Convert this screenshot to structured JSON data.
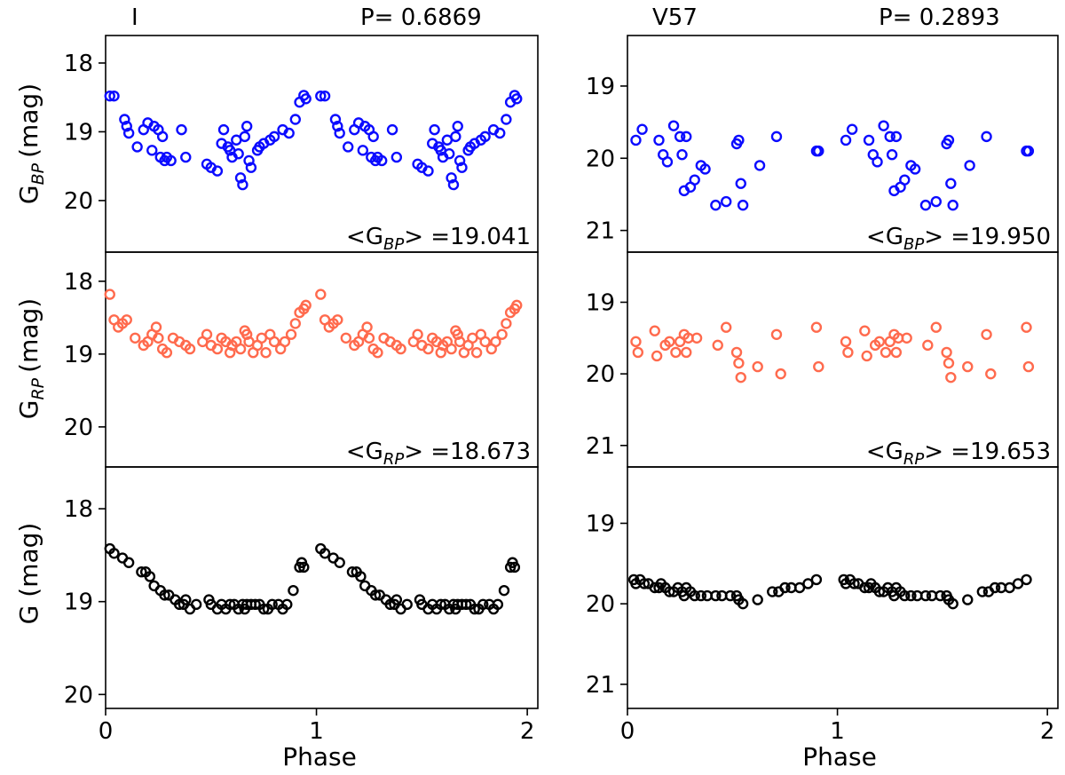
{
  "figure": {
    "xlabel": "Phase",
    "x_ticks": [
      0,
      1,
      2
    ],
    "xlim": [
      0,
      2.05
    ]
  },
  "columns": [
    {
      "star": "I",
      "period_label": "P= 0.6869",
      "panels": [
        {
          "band": "BP",
          "ylabel_base": "G",
          "ylabel_sub": "BP",
          "ylabel_unit": "(mag)",
          "ylim": [
            17.6,
            20.75
          ],
          "y_ticks": [
            18,
            19,
            20
          ],
          "color": "#0b0bff",
          "mean_label_prefix": "<G",
          "mean_label_sub": "BP",
          "mean_label_suffix": "> =19.041"
        },
        {
          "band": "RP",
          "ylabel_base": "G",
          "ylabel_sub": "RP",
          "ylabel_unit": "(mag)",
          "ylim": [
            17.6,
            20.55
          ],
          "y_ticks": [
            18,
            19,
            20
          ],
          "color": "#ff6a4d",
          "mean_label_prefix": "<G",
          "mean_label_sub": "RP",
          "mean_label_suffix": "> =18.673"
        },
        {
          "band": "G",
          "ylabel_base": "G (mag)",
          "ylabel_sub": "",
          "ylabel_unit": "",
          "ylim": [
            17.55,
            20.15
          ],
          "y_ticks": [
            18,
            19,
            20
          ],
          "color": "#000000",
          "mean_label_prefix": "",
          "mean_label_sub": "",
          "mean_label_suffix": ""
        }
      ]
    },
    {
      "star": "V57",
      "period_label": "P= 0.2893",
      "panels": [
        {
          "band": "BP",
          "ylabel_base": "",
          "ylabel_sub": "",
          "ylabel_unit": "",
          "ylim": [
            18.3,
            21.3
          ],
          "y_ticks": [
            19,
            20,
            21
          ],
          "color": "#0b0bff",
          "mean_label_prefix": "<G",
          "mean_label_sub": "BP",
          "mean_label_suffix": "> =19.950"
        },
        {
          "band": "RP",
          "ylabel_base": "",
          "ylabel_sub": "",
          "ylabel_unit": "",
          "ylim": [
            18.3,
            21.3
          ],
          "y_ticks": [
            19,
            20,
            21
          ],
          "color": "#ff6a4d",
          "mean_label_prefix": "<G",
          "mean_label_sub": "RP",
          "mean_label_suffix": "> =19.653"
        },
        {
          "band": "G",
          "ylabel_base": "",
          "ylabel_sub": "",
          "ylabel_unit": "",
          "ylim": [
            18.3,
            21.3
          ],
          "y_ticks": [
            19,
            20,
            21
          ],
          "color": "#000000",
          "mean_label_prefix": "",
          "mean_label_sub": "",
          "mean_label_suffix": ""
        }
      ]
    }
  ],
  "chart_data": [
    {
      "type": "scatter",
      "title": "I   P= 0.6869",
      "xlabel": "Phase",
      "series": [
        {
          "name": "G_BP",
          "x": [
            0.02,
            0.04,
            0.09,
            0.1,
            0.11,
            0.15,
            0.18,
            0.2,
            0.22,
            0.23,
            0.25,
            0.26,
            0.27,
            0.28,
            0.29,
            0.31,
            0.36,
            0.38,
            0.48,
            0.5,
            0.53,
            0.55,
            0.56,
            0.58,
            0.59,
            0.6,
            0.62,
            0.63,
            0.64,
            0.65,
            0.66,
            0.67,
            0.68,
            0.69,
            0.72,
            0.73,
            0.75,
            0.78,
            0.8,
            0.84,
            0.87,
            0.9,
            0.92,
            0.94,
            0.95
          ],
          "y": [
            18.48,
            18.48,
            18.82,
            18.92,
            19.02,
            19.22,
            18.97,
            18.87,
            19.27,
            18.92,
            18.97,
            19.37,
            19.07,
            19.42,
            19.37,
            19.42,
            18.97,
            19.37,
            19.47,
            19.52,
            19.57,
            19.17,
            18.97,
            19.22,
            19.27,
            19.37,
            19.12,
            19.32,
            19.67,
            19.77,
            19.07,
            18.92,
            19.42,
            19.52,
            19.27,
            19.22,
            19.17,
            19.12,
            19.07,
            18.97,
            19.02,
            18.82,
            18.57,
            18.47,
            18.52
          ]
        },
        {
          "name": "G_BP (repeat)",
          "x": [
            1.02,
            1.04,
            1.09,
            1.1,
            1.11,
            1.15,
            1.18,
            1.2,
            1.22,
            1.23,
            1.25,
            1.26,
            1.27,
            1.28,
            1.29,
            1.31,
            1.36,
            1.38,
            1.48,
            1.5,
            1.53,
            1.55,
            1.56,
            1.58,
            1.59,
            1.6,
            1.62,
            1.63,
            1.64,
            1.65,
            1.66,
            1.67,
            1.68,
            1.69,
            1.72,
            1.73,
            1.75,
            1.78,
            1.8,
            1.84,
            1.87,
            1.9,
            1.92,
            1.94,
            1.95
          ],
          "y": [
            18.48,
            18.48,
            18.82,
            18.92,
            19.02,
            19.22,
            18.97,
            18.87,
            19.27,
            18.92,
            18.97,
            19.37,
            19.07,
            19.42,
            19.37,
            19.42,
            18.97,
            19.37,
            19.47,
            19.52,
            19.57,
            19.17,
            18.97,
            19.22,
            19.27,
            19.37,
            19.12,
            19.32,
            19.67,
            19.77,
            19.07,
            18.92,
            19.42,
            19.52,
            19.27,
            19.22,
            19.17,
            19.12,
            19.07,
            18.97,
            19.02,
            18.82,
            18.57,
            18.47,
            18.52
          ]
        },
        {
          "name": "G_RP",
          "x": [
            0.02,
            0.04,
            0.06,
            0.08,
            0.1,
            0.14,
            0.18,
            0.2,
            0.22,
            0.24,
            0.25,
            0.27,
            0.29,
            0.32,
            0.35,
            0.38,
            0.4,
            0.46,
            0.48,
            0.5,
            0.53,
            0.55,
            0.57,
            0.59,
            0.6,
            0.62,
            0.64,
            0.66,
            0.67,
            0.68,
            0.7,
            0.72,
            0.74,
            0.76,
            0.78,
            0.8,
            0.83,
            0.85,
            0.88,
            0.9,
            0.92,
            0.94,
            0.95
          ],
          "y": [
            18.18,
            18.53,
            18.63,
            18.58,
            18.53,
            18.78,
            18.88,
            18.83,
            18.73,
            18.63,
            18.78,
            18.93,
            18.98,
            18.78,
            18.83,
            18.88,
            18.93,
            18.83,
            18.73,
            18.88,
            18.93,
            18.78,
            18.83,
            18.98,
            18.88,
            18.83,
            18.93,
            18.68,
            18.73,
            18.83,
            18.98,
            18.88,
            18.78,
            18.98,
            18.73,
            18.83,
            18.93,
            18.83,
            18.73,
            18.58,
            18.43,
            18.38,
            18.33
          ]
        },
        {
          "name": "G_RP (repeat)",
          "x": [
            1.02,
            1.04,
            1.06,
            1.08,
            1.1,
            1.14,
            1.18,
            1.2,
            1.22,
            1.24,
            1.25,
            1.27,
            1.29,
            1.32,
            1.35,
            1.38,
            1.4,
            1.46,
            1.48,
            1.5,
            1.53,
            1.55,
            1.57,
            1.59,
            1.6,
            1.62,
            1.64,
            1.66,
            1.67,
            1.68,
            1.7,
            1.72,
            1.74,
            1.76,
            1.78,
            1.8,
            1.83,
            1.85,
            1.88,
            1.9,
            1.92,
            1.94,
            1.95
          ],
          "y": [
            18.18,
            18.53,
            18.63,
            18.58,
            18.53,
            18.78,
            18.88,
            18.83,
            18.73,
            18.63,
            18.78,
            18.93,
            18.98,
            18.78,
            18.83,
            18.88,
            18.93,
            18.83,
            18.73,
            18.88,
            18.93,
            18.78,
            18.83,
            18.98,
            18.88,
            18.83,
            18.93,
            18.68,
            18.73,
            18.83,
            18.98,
            18.88,
            18.78,
            18.98,
            18.73,
            18.83,
            18.93,
            18.83,
            18.73,
            18.58,
            18.43,
            18.38,
            18.33
          ]
        },
        {
          "name": "G",
          "x": [
            0.02,
            0.04,
            0.08,
            0.11,
            0.17,
            0.19,
            0.21,
            0.23,
            0.26,
            0.28,
            0.3,
            0.33,
            0.35,
            0.37,
            0.38,
            0.4,
            0.43,
            0.49,
            0.5,
            0.53,
            0.55,
            0.57,
            0.59,
            0.61,
            0.63,
            0.65,
            0.66,
            0.67,
            0.69,
            0.71,
            0.73,
            0.75,
            0.77,
            0.79,
            0.82,
            0.84,
            0.86,
            0.89,
            0.92,
            0.93,
            0.94
          ],
          "y": [
            18.43,
            18.48,
            18.53,
            18.58,
            18.68,
            18.68,
            18.73,
            18.83,
            18.88,
            18.93,
            18.93,
            18.98,
            19.03,
            19.03,
            18.98,
            19.08,
            19.03,
            18.98,
            19.03,
            19.08,
            19.03,
            19.08,
            19.03,
            19.03,
            19.08,
            19.03,
            19.08,
            19.03,
            19.03,
            19.03,
            19.03,
            19.08,
            19.08,
            19.03,
            19.03,
            19.08,
            19.03,
            18.88,
            18.63,
            18.58,
            18.63
          ]
        },
        {
          "name": "G (repeat)",
          "x": [
            1.02,
            1.04,
            1.08,
            1.11,
            1.17,
            1.19,
            1.21,
            1.23,
            1.26,
            1.28,
            1.3,
            1.33,
            1.35,
            1.37,
            1.38,
            1.4,
            1.43,
            1.49,
            1.5,
            1.53,
            1.55,
            1.57,
            1.59,
            1.61,
            1.63,
            1.65,
            1.66,
            1.67,
            1.69,
            1.71,
            1.73,
            1.75,
            1.77,
            1.79,
            1.82,
            1.84,
            1.86,
            1.89,
            1.92,
            1.93,
            1.94
          ],
          "y": [
            18.43,
            18.48,
            18.53,
            18.58,
            18.68,
            18.68,
            18.73,
            18.83,
            18.88,
            18.93,
            18.93,
            18.98,
            19.03,
            19.03,
            18.98,
            19.08,
            19.03,
            18.98,
            19.03,
            19.08,
            19.03,
            19.08,
            19.03,
            19.03,
            19.08,
            19.03,
            19.08,
            19.03,
            19.03,
            19.03,
            19.03,
            19.08,
            19.08,
            19.03,
            19.03,
            19.08,
            19.03,
            18.88,
            18.63,
            18.58,
            18.63
          ]
        }
      ]
    },
    {
      "type": "scatter",
      "title": "V57   P= 0.2893",
      "xlabel": "Phase",
      "series": [
        {
          "name": "G_BP",
          "x": [
            0.04,
            0.07,
            0.15,
            0.17,
            0.19,
            0.22,
            0.25,
            0.26,
            0.27,
            0.28,
            0.3,
            0.32,
            0.35,
            0.37,
            0.42,
            0.47,
            0.52,
            0.53,
            0.54,
            0.55,
            0.63,
            0.71,
            0.9,
            0.91
          ],
          "y": [
            19.75,
            19.6,
            19.75,
            19.95,
            20.05,
            19.55,
            19.7,
            19.95,
            20.45,
            19.7,
            20.4,
            20.3,
            20.1,
            20.15,
            20.65,
            20.6,
            19.8,
            19.75,
            20.35,
            20.65,
            20.1,
            19.7,
            19.9,
            19.9
          ]
        },
        {
          "name": "G_BP (repeat)",
          "x": [
            1.04,
            1.07,
            1.15,
            1.17,
            1.19,
            1.22,
            1.25,
            1.26,
            1.27,
            1.28,
            1.3,
            1.32,
            1.35,
            1.37,
            1.42,
            1.47,
            1.52,
            1.53,
            1.54,
            1.55,
            1.63,
            1.71,
            1.9,
            1.91
          ],
          "y": [
            19.75,
            19.6,
            19.75,
            19.95,
            20.05,
            19.55,
            19.7,
            19.95,
            20.45,
            19.7,
            20.4,
            20.3,
            20.1,
            20.15,
            20.65,
            20.6,
            19.8,
            19.75,
            20.35,
            20.65,
            20.1,
            19.7,
            19.9,
            19.9
          ]
        },
        {
          "name": "G_RP",
          "x": [
            0.04,
            0.05,
            0.13,
            0.14,
            0.18,
            0.2,
            0.23,
            0.25,
            0.27,
            0.28,
            0.29,
            0.33,
            0.43,
            0.47,
            0.52,
            0.53,
            0.54,
            0.62,
            0.71,
            0.73,
            0.9,
            0.91
          ],
          "y": [
            19.55,
            19.7,
            19.4,
            19.75,
            19.6,
            19.55,
            19.7,
            19.55,
            19.45,
            19.7,
            19.5,
            19.5,
            19.6,
            19.35,
            19.7,
            19.85,
            20.05,
            19.9,
            19.45,
            20.0,
            19.35,
            19.9
          ]
        },
        {
          "name": "G_RP (repeat)",
          "x": [
            1.04,
            1.05,
            1.13,
            1.14,
            1.18,
            1.2,
            1.23,
            1.25,
            1.27,
            1.28,
            1.29,
            1.33,
            1.43,
            1.47,
            1.52,
            1.53,
            1.54,
            1.62,
            1.71,
            1.73,
            1.9,
            1.91
          ],
          "y": [
            19.55,
            19.7,
            19.4,
            19.75,
            19.6,
            19.55,
            19.7,
            19.55,
            19.45,
            19.7,
            19.5,
            19.5,
            19.6,
            19.35,
            19.7,
            19.85,
            20.05,
            19.9,
            19.45,
            20.0,
            19.35,
            19.9
          ]
        },
        {
          "name": "G",
          "x": [
            0.03,
            0.04,
            0.06,
            0.08,
            0.1,
            0.13,
            0.15,
            0.16,
            0.18,
            0.2,
            0.22,
            0.24,
            0.26,
            0.27,
            0.28,
            0.3,
            0.32,
            0.35,
            0.38,
            0.42,
            0.45,
            0.49,
            0.52,
            0.53,
            0.55,
            0.62,
            0.69,
            0.72,
            0.75,
            0.78,
            0.82,
            0.86,
            0.9
          ],
          "y": [
            19.7,
            19.75,
            19.7,
            19.75,
            19.75,
            19.8,
            19.8,
            19.75,
            19.8,
            19.85,
            19.85,
            19.8,
            19.85,
            19.9,
            19.8,
            19.85,
            19.9,
            19.9,
            19.9,
            19.9,
            19.9,
            19.9,
            19.9,
            19.95,
            20.0,
            19.95,
            19.85,
            19.85,
            19.8,
            19.8,
            19.8,
            19.75,
            19.7
          ]
        },
        {
          "name": "G (repeat)",
          "x": [
            1.03,
            1.04,
            1.06,
            1.08,
            1.1,
            1.13,
            1.15,
            1.16,
            1.18,
            1.2,
            1.22,
            1.24,
            1.26,
            1.27,
            1.28,
            1.3,
            1.32,
            1.35,
            1.38,
            1.42,
            1.45,
            1.49,
            1.52,
            1.53,
            1.55,
            1.62,
            1.69,
            1.72,
            1.75,
            1.78,
            1.82,
            1.86,
            1.9
          ],
          "y": [
            19.7,
            19.75,
            19.7,
            19.75,
            19.75,
            19.8,
            19.8,
            19.75,
            19.8,
            19.85,
            19.85,
            19.8,
            19.85,
            19.9,
            19.8,
            19.85,
            19.9,
            19.9,
            19.9,
            19.9,
            19.9,
            19.9,
            19.9,
            19.95,
            20.0,
            19.95,
            19.85,
            19.85,
            19.8,
            19.8,
            19.8,
            19.75,
            19.7
          ]
        }
      ]
    }
  ]
}
